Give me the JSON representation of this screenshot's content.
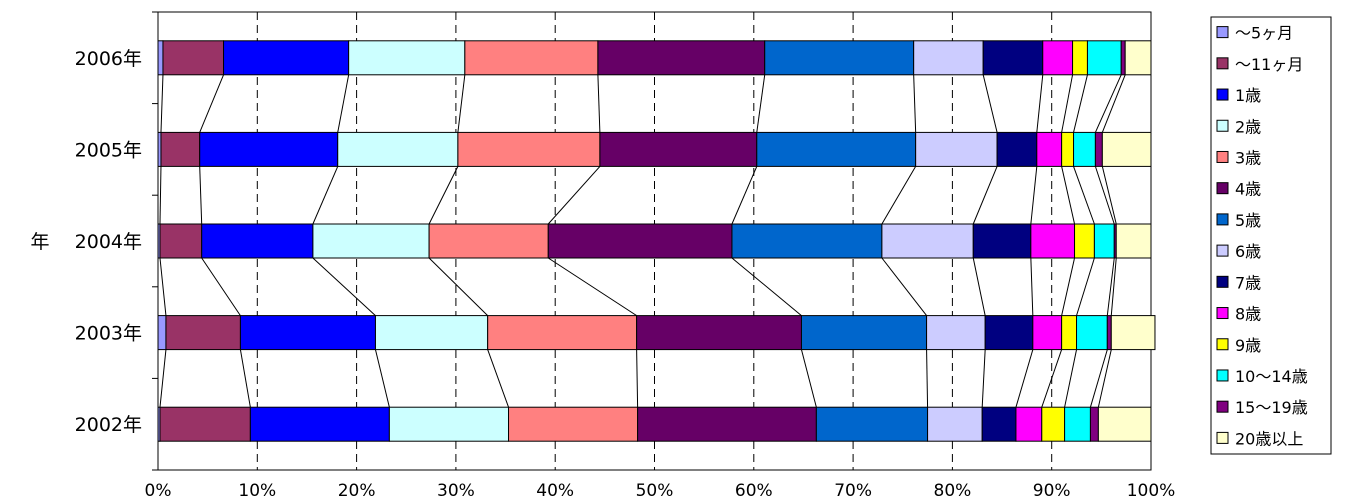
{
  "chart_data": {
    "type": "bar",
    "orientation": "horizontal",
    "stacked": "percent",
    "ylabel": "年",
    "xlabel": "",
    "xlim": [
      0,
      100
    ],
    "x_ticks": [
      "0%",
      "10%",
      "20%",
      "30%",
      "40%",
      "50%",
      "60%",
      "70%",
      "80%",
      "90%",
      "100%"
    ],
    "grid": "vertical-dashed",
    "legend_position": "right",
    "series_lines": true,
    "categories": [
      "2006年",
      "2005年",
      "2004年",
      "2003年",
      "2002年"
    ],
    "series": [
      {
        "name": "～5ヶ月",
        "color": "#9999ff",
        "values": [
          0.5,
          0.3,
          0.2,
          0.8,
          0.2
        ]
      },
      {
        "name": "～11ヶ月",
        "color": "#993366",
        "values": [
          6.1,
          3.9,
          4.2,
          7.5,
          9.1
        ]
      },
      {
        "name": "1歳",
        "color": "#0000ff",
        "values": [
          12.6,
          13.9,
          11.2,
          13.6,
          14.0
        ]
      },
      {
        "name": "2歳",
        "color": "#ccffff",
        "values": [
          11.7,
          12.1,
          11.7,
          11.3,
          12.0
        ]
      },
      {
        "name": "3歳",
        "color": "#ff8080",
        "values": [
          13.4,
          14.3,
          12.0,
          15.0,
          13.0
        ]
      },
      {
        "name": "4歳",
        "color": "#660066",
        "values": [
          16.8,
          15.8,
          18.5,
          16.6,
          18.0
        ]
      },
      {
        "name": "5歳",
        "color": "#0066cc",
        "values": [
          15.0,
          16.0,
          15.1,
          12.6,
          11.2
        ]
      },
      {
        "name": "6歳",
        "color": "#ccccff",
        "values": [
          7.0,
          8.2,
          9.2,
          5.9,
          5.5
        ]
      },
      {
        "name": "7歳",
        "color": "#000080",
        "values": [
          6.0,
          4.0,
          5.8,
          4.8,
          3.4
        ]
      },
      {
        "name": "8歳",
        "color": "#ff00ff",
        "values": [
          3.0,
          2.5,
          4.4,
          2.9,
          2.6
        ]
      },
      {
        "name": "9歳",
        "color": "#ffff00",
        "values": [
          1.5,
          1.2,
          2.0,
          1.5,
          2.3
        ]
      },
      {
        "name": "10～14歳",
        "color": "#00ffff",
        "values": [
          3.4,
          2.2,
          2.0,
          3.1,
          2.6
        ]
      },
      {
        "name": "15～19歳",
        "color": "#800080",
        "values": [
          0.4,
          0.7,
          0.2,
          0.4,
          0.8
        ]
      },
      {
        "name": "20歳以上",
        "color": "#ffffcc",
        "values": [
          2.6,
          4.9,
          3.5,
          4.4,
          5.3
        ]
      }
    ]
  }
}
